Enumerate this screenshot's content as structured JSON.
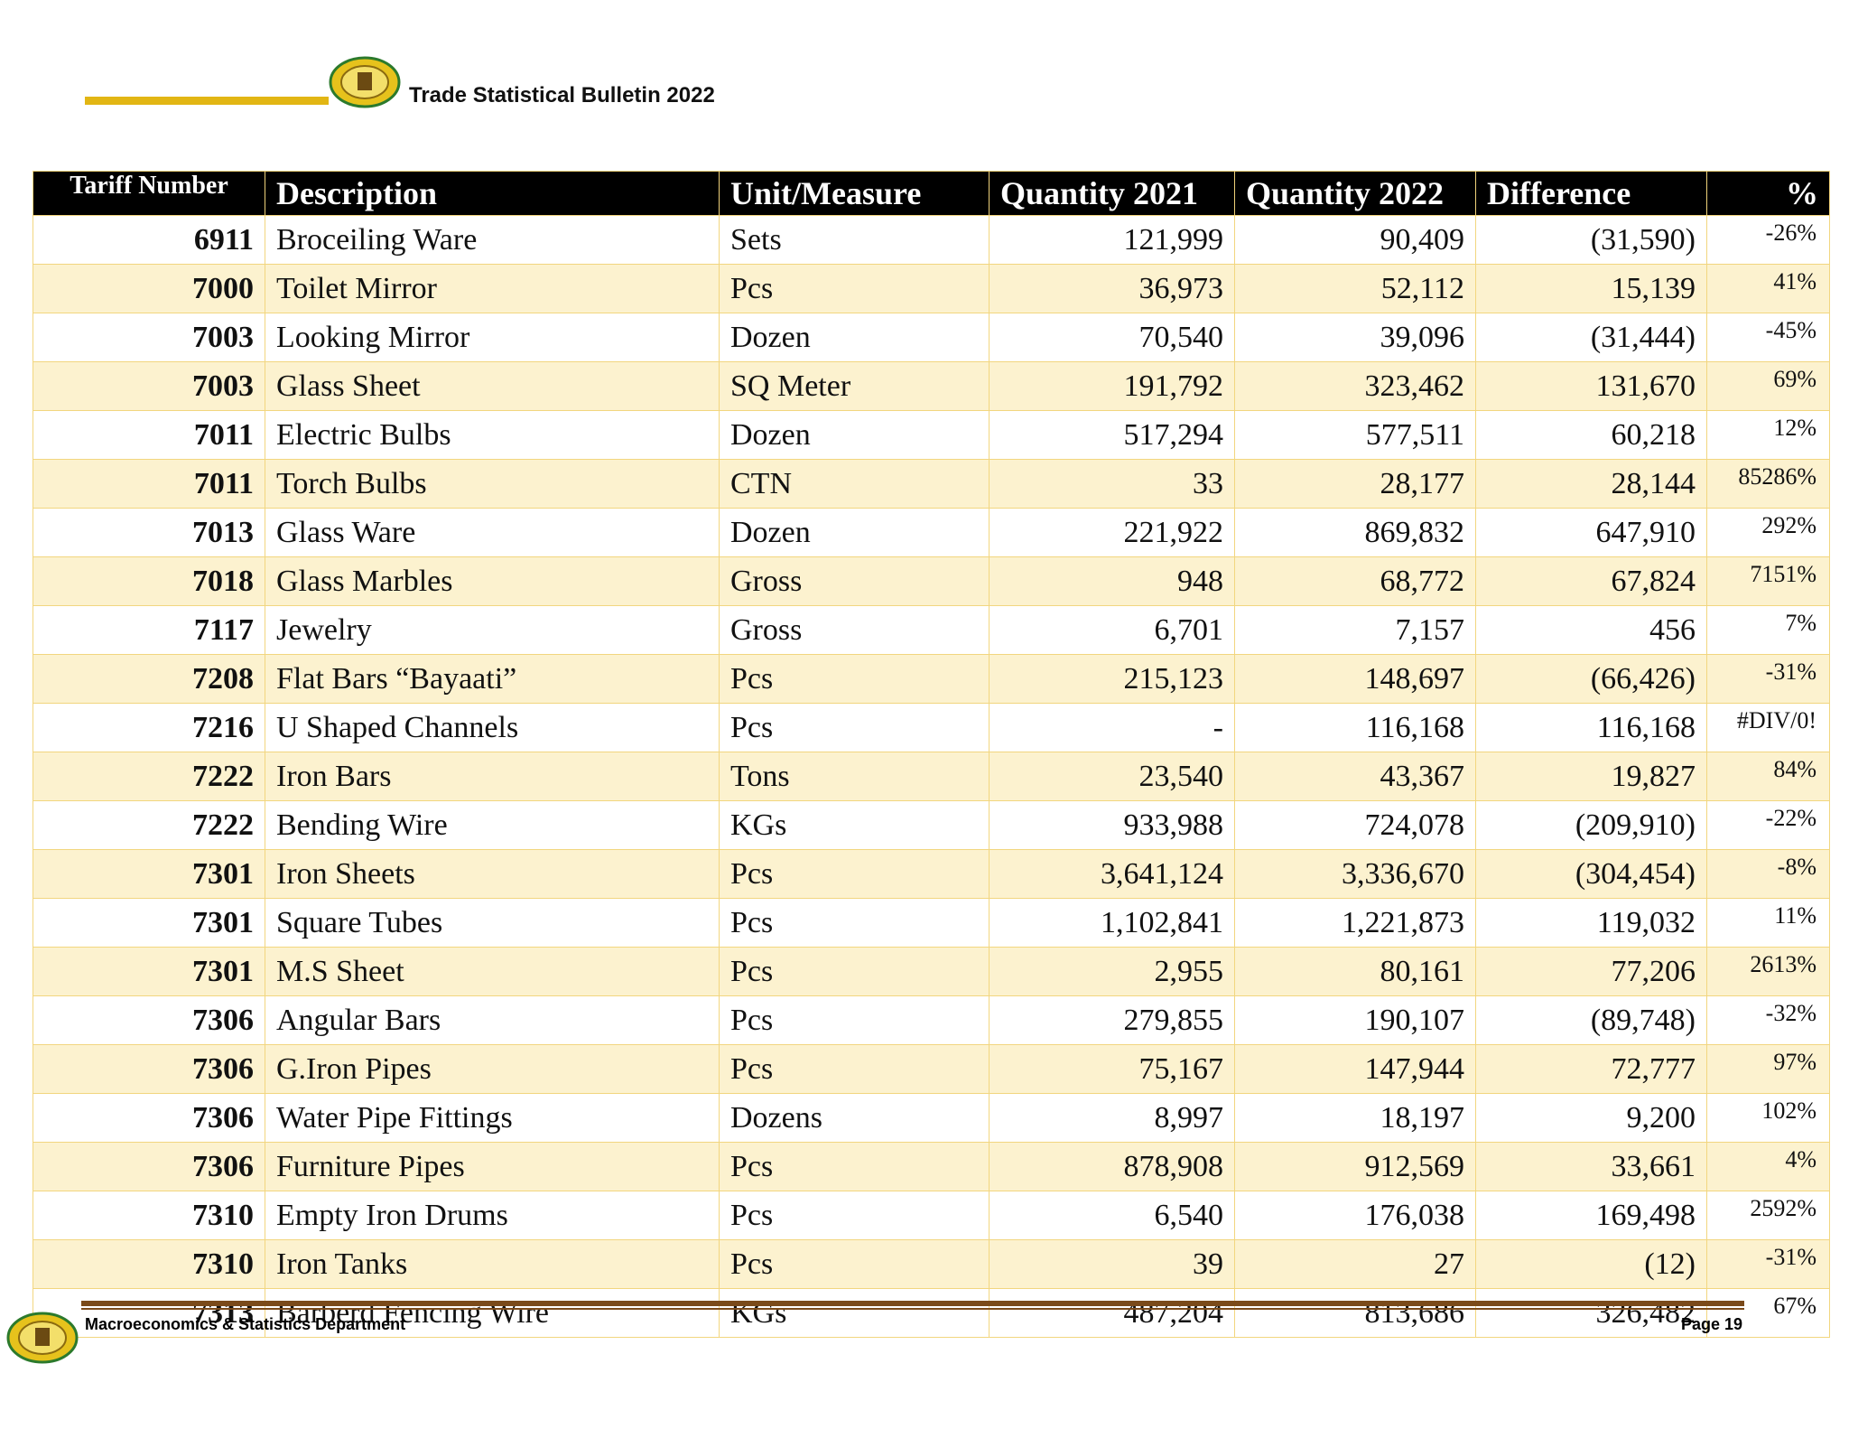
{
  "header": {
    "title": "Trade Statistical Bulletin 2022"
  },
  "table": {
    "columns": [
      "Tariff Number",
      "Description",
      "Unit/Measure",
      "Quantity 2021",
      "Quantity 2022",
      "Difference",
      "%"
    ],
    "rows": [
      [
        "6911",
        "Broceiling Ware",
        "Sets",
        "121,999",
        "90,409",
        "(31,590)",
        "-26%"
      ],
      [
        "7000",
        "Toilet Mirror",
        "Pcs",
        "36,973",
        "52,112",
        "15,139",
        "41%"
      ],
      [
        "7003",
        "Looking Mirror",
        "Dozen",
        "70,540",
        "39,096",
        "(31,444)",
        "-45%"
      ],
      [
        "7003",
        "Glass Sheet",
        "SQ Meter",
        "191,792",
        "323,462",
        "131,670",
        "69%"
      ],
      [
        "7011",
        "Electric Bulbs",
        "Dozen",
        "517,294",
        "577,511",
        "60,218",
        "12%"
      ],
      [
        "7011",
        "Torch Bulbs",
        "CTN",
        "33",
        "28,177",
        "28,144",
        "85286%"
      ],
      [
        "7013",
        "Glass Ware",
        "Dozen",
        "221,922",
        "869,832",
        "647,910",
        "292%"
      ],
      [
        "7018",
        "Glass Marbles",
        "Gross",
        "948",
        "68,772",
        "67,824",
        "7151%"
      ],
      [
        "7117",
        "Jewelry",
        "Gross",
        "6,701",
        "7,157",
        "456",
        "7%"
      ],
      [
        "7208",
        "Flat Bars “Bayaati”",
        "Pcs",
        "215,123",
        "148,697",
        "(66,426)",
        "-31%"
      ],
      [
        "7216",
        "U Shaped Channels",
        "Pcs",
        "-",
        "116,168",
        "116,168",
        "#DIV/0!"
      ],
      [
        "7222",
        "Iron Bars",
        "Tons",
        "23,540",
        "43,367",
        "19,827",
        "84%"
      ],
      [
        "7222",
        "Bending Wire",
        "KGs",
        "933,988",
        "724,078",
        "(209,910)",
        "-22%"
      ],
      [
        "7301",
        "Iron Sheets",
        "Pcs",
        "3,641,124",
        "3,336,670",
        "(304,454)",
        "-8%"
      ],
      [
        "7301",
        "Square Tubes",
        "Pcs",
        "1,102,841",
        "1,221,873",
        "119,032",
        "11%"
      ],
      [
        "7301",
        "M.S Sheet",
        "Pcs",
        "2,955",
        "80,161",
        "77,206",
        "2613%"
      ],
      [
        "7306",
        "Angular Bars",
        "Pcs",
        "279,855",
        "190,107",
        "(89,748)",
        "-32%"
      ],
      [
        "7306",
        "G.Iron Pipes",
        "Pcs",
        "75,167",
        "147,944",
        "72,777",
        "97%"
      ],
      [
        "7306",
        "Water Pipe Fittings",
        "Dozens",
        "8,997",
        "18,197",
        "9,200",
        "102%"
      ],
      [
        "7306",
        "Furniture Pipes",
        "Pcs",
        "878,908",
        "912,569",
        "33,661",
        "4%"
      ],
      [
        "7310",
        "Empty Iron Drums",
        "Pcs",
        "6,540",
        "176,038",
        "169,498",
        "2592%"
      ],
      [
        "7310",
        "Iron Tanks",
        "Pcs",
        "39",
        "27",
        "(12)",
        "-31%"
      ],
      [
        "7313",
        "Barberd Fencing Wire",
        "KGs",
        "487,204",
        "813,686",
        "326,482",
        "67%"
      ]
    ]
  },
  "footer": {
    "department": "Macroeconomics & Statistics Department",
    "page": "Page 19"
  }
}
